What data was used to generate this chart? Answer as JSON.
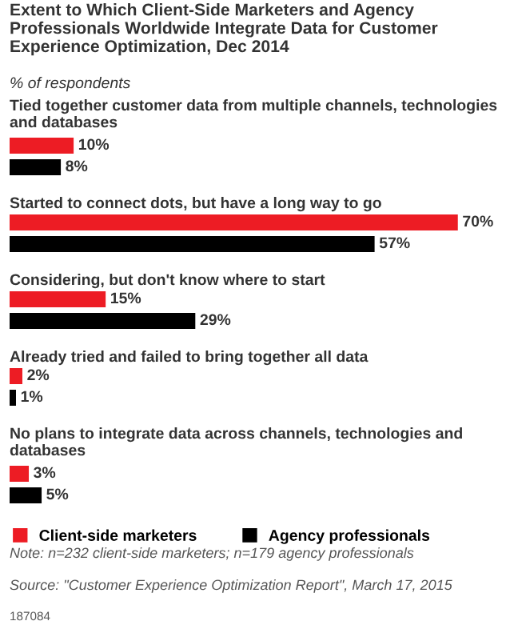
{
  "chart_data": {
    "type": "bar",
    "orientation": "horizontal",
    "title": "Extent to Which Client-Side Marketers and Agency Professionals Worldwide Integrate Data for Customer Experience Optimization, Dec 2014",
    "subtitle": "% of respondents",
    "categories": [
      "Tied together customer data from multiple channels, technologies and databases",
      "Started to connect dots, but have a long way to go",
      "Considering, but don't know where to start",
      "Already tried and failed to bring together all data",
      "No plans to integrate data across channels, technologies and databases"
    ],
    "series": [
      {
        "name": "Client-side marketers",
        "color": "#ed1c24",
        "values": [
          10,
          70,
          15,
          2,
          3
        ],
        "value_labels": [
          "10%",
          "70%",
          "15%",
          "2%",
          "3%"
        ]
      },
      {
        "name": "Agency professionals",
        "color": "#000000",
        "values": [
          8,
          57,
          29,
          1,
          5
        ],
        "value_labels": [
          "8%",
          "57%",
          "29%",
          "1%",
          "5%"
        ]
      }
    ],
    "legend": "bottom",
    "annotations": [
      "Note: n=232 client-side marketers; n=179 agency professionals",
      "Source: \"Customer Experience Optimization Report\", March 17, 2015",
      "187084"
    ]
  }
}
